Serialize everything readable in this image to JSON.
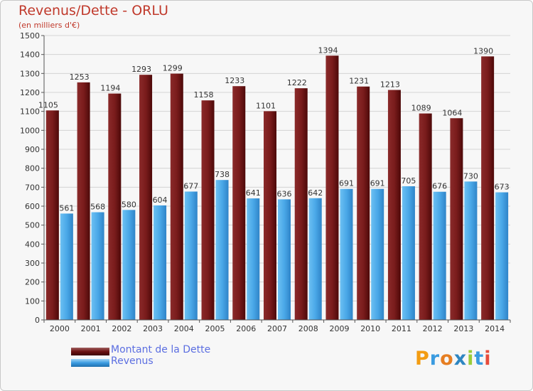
{
  "title": "Revenus/Dette - ORLU",
  "subtitle": "(en milliers d'€)",
  "colors": {
    "dette": "#6b1111",
    "revenus": "#3a9be0",
    "title": "#c0392b",
    "legend_text": "#5b6ee1"
  },
  "legend": {
    "dette": "Montant de la Dette",
    "revenus": "Revenus"
  },
  "logo": {
    "text": "Proxiti",
    "letters": [
      "P",
      "r",
      "o",
      "x",
      "i",
      "t",
      "i"
    ]
  },
  "chart_data": {
    "type": "bar",
    "title": "Revenus/Dette - ORLU",
    "subtitle": "(en milliers d'€)",
    "categories": [
      "2000",
      "2001",
      "2002",
      "2003",
      "2004",
      "2005",
      "2006",
      "2007",
      "2008",
      "2009",
      "2010",
      "2011",
      "2012",
      "2013",
      "2014"
    ],
    "series": [
      {
        "name": "Montant de la Dette",
        "values": [
          1105,
          1253,
          1194,
          1293,
          1299,
          1158,
          1233,
          1101,
          1222,
          1394,
          1231,
          1213,
          1089,
          1064,
          1390
        ]
      },
      {
        "name": "Revenus",
        "values": [
          561,
          568,
          580,
          604,
          677,
          738,
          641,
          636,
          642,
          691,
          691,
          705,
          676,
          730,
          673
        ]
      }
    ],
    "ylim": [
      0,
      1500
    ],
    "yticks": [
      0,
      100,
      200,
      300,
      400,
      500,
      600,
      700,
      800,
      900,
      1000,
      1100,
      1200,
      1300,
      1400,
      1500
    ],
    "grid": true,
    "legend_position": "bottom-left"
  }
}
